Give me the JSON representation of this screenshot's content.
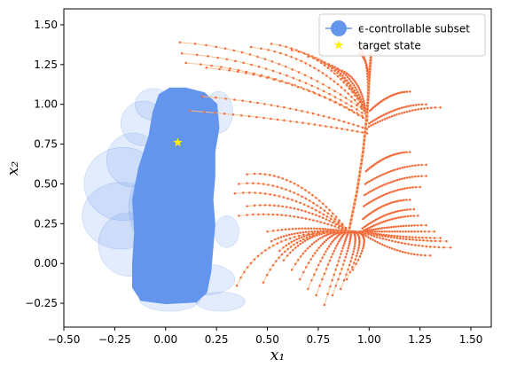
{
  "chart_data": {
    "type": "scatter",
    "xlabel": "x₁",
    "ylabel": "x₂",
    "xlim": [
      -0.5,
      1.6
    ],
    "ylim": [
      -0.4,
      1.6
    ],
    "x_ticks": [
      "−0.50",
      "−0.25",
      "0.00",
      "0.25",
      "0.50",
      "0.75",
      "1.00",
      "1.25",
      "1.50"
    ],
    "x_tick_values": [
      -0.5,
      -0.25,
      0.0,
      0.25,
      0.5,
      0.75,
      1.0,
      1.25,
      1.5
    ],
    "y_ticks": [
      "−0.25",
      "0.00",
      "0.25",
      "0.50",
      "0.75",
      "1.00",
      "1.25",
      "1.50"
    ],
    "y_tick_values": [
      -0.25,
      0.0,
      0.25,
      0.5,
      0.75,
      1.0,
      1.25,
      1.5
    ],
    "grid": false,
    "legend_position": "top-right",
    "legend": [
      {
        "label": "ϵ-controllable subset",
        "marker": "circle-line",
        "color": "#6495ED"
      },
      {
        "label": "target state",
        "marker": "star",
        "color": "#FFEE00"
      }
    ],
    "colors": {
      "subset_fill": "#6495ED",
      "subset_halo": "#D6E0F5",
      "trajectory_line": "#F8BD8A",
      "trajectory_dot": "#F26A3B",
      "target": "#FFEE00"
    },
    "target_state": {
      "x": 0.06,
      "y": 0.76
    },
    "subset_core": [
      [
        0.02,
        1.1
      ],
      [
        0.1,
        1.1
      ],
      [
        0.19,
        1.07
      ],
      [
        0.25,
        1.0
      ],
      [
        0.26,
        0.85
      ],
      [
        0.24,
        0.7
      ],
      [
        0.24,
        0.55
      ],
      [
        0.23,
        0.4
      ],
      [
        0.24,
        0.25
      ],
      [
        0.23,
        0.1
      ],
      [
        0.22,
        -0.05
      ],
      [
        0.2,
        -0.18
      ],
      [
        0.15,
        -0.24
      ],
      [
        0.0,
        -0.25
      ],
      [
        -0.12,
        -0.23
      ],
      [
        -0.16,
        -0.15
      ],
      [
        -0.16,
        0.0
      ],
      [
        -0.15,
        0.2
      ],
      [
        -0.16,
        0.4
      ],
      [
        -0.13,
        0.6
      ],
      [
        -0.08,
        0.8
      ],
      [
        -0.06,
        0.95
      ],
      [
        -0.03,
        1.06
      ]
    ],
    "subset_ellipses": [
      {
        "cx": -0.21,
        "cy": 0.5,
        "rx": 0.19,
        "ry": 0.23
      },
      {
        "cx": -0.22,
        "cy": 0.3,
        "rx": 0.19,
        "ry": 0.21
      },
      {
        "cx": -0.18,
        "cy": 0.12,
        "rx": 0.15,
        "ry": 0.2
      },
      {
        "cx": -0.16,
        "cy": 0.65,
        "rx": 0.13,
        "ry": 0.17
      },
      {
        "cx": -0.11,
        "cy": 0.88,
        "rx": 0.11,
        "ry": 0.14
      },
      {
        "cx": -0.06,
        "cy": 1.0,
        "rx": 0.09,
        "ry": 0.1
      },
      {
        "cx": 0.0,
        "cy": 0.35,
        "rx": 0.18,
        "ry": 0.29
      },
      {
        "cx": 0.02,
        "cy": -0.22,
        "rx": 0.15,
        "ry": 0.08
      },
      {
        "cx": 0.18,
        "cy": -0.1,
        "rx": 0.16,
        "ry": 0.1
      },
      {
        "cx": 0.27,
        "cy": -0.24,
        "rx": 0.12,
        "ry": 0.06
      },
      {
        "cx": 0.3,
        "cy": 0.2,
        "rx": 0.06,
        "ry": 0.1
      },
      {
        "cx": 0.26,
        "cy": 0.95,
        "rx": 0.07,
        "ry": 0.13
      }
    ],
    "trajectory_starts": [
      [
        0.07,
        1.39
      ],
      [
        0.08,
        1.32
      ],
      [
        0.1,
        1.26
      ],
      [
        0.2,
        1.23
      ],
      [
        0.18,
        1.05
      ],
      [
        0.12,
        0.96
      ],
      [
        0.42,
        1.36
      ],
      [
        0.52,
        1.38
      ],
      [
        0.62,
        1.34
      ],
      [
        0.7,
        1.3
      ],
      [
        0.78,
        1.26
      ],
      [
        0.85,
        1.22
      ],
      [
        0.93,
        1.38
      ],
      [
        0.95,
        1.32
      ],
      [
        1.2,
        1.08
      ],
      [
        1.28,
        1.0
      ],
      [
        1.35,
        0.98
      ],
      [
        1.2,
        0.7
      ],
      [
        1.28,
        0.62
      ],
      [
        1.28,
        0.55
      ],
      [
        1.25,
        0.48
      ],
      [
        1.2,
        0.4
      ],
      [
        1.22,
        0.34
      ],
      [
        1.24,
        0.3
      ],
      [
        1.28,
        0.24
      ],
      [
        1.32,
        0.2
      ],
      [
        1.35,
        0.16
      ],
      [
        1.38,
        0.14
      ],
      [
        1.4,
        0.1
      ],
      [
        1.3,
        0.05
      ],
      [
        0.4,
        0.56
      ],
      [
        0.36,
        0.5
      ],
      [
        0.34,
        0.44
      ],
      [
        0.4,
        0.36
      ],
      [
        0.36,
        0.3
      ],
      [
        0.5,
        0.2
      ],
      [
        0.52,
        0.14
      ],
      [
        0.56,
        0.08
      ],
      [
        0.58,
        0.02
      ],
      [
        0.62,
        -0.04
      ],
      [
        0.66,
        -0.1
      ],
      [
        0.7,
        -0.16
      ],
      [
        0.74,
        -0.2
      ],
      [
        0.78,
        -0.26
      ],
      [
        0.82,
        -0.2
      ],
      [
        0.86,
        -0.16
      ],
      [
        0.89,
        -0.1
      ],
      [
        0.92,
        -0.04
      ],
      [
        0.35,
        -0.14
      ],
      [
        0.48,
        -0.12
      ]
    ],
    "attractor": {
      "x": 0.9,
      "y": 0.2
    },
    "main_stem": [
      [
        0.9,
        0.2
      ],
      [
        0.94,
        0.45
      ],
      [
        0.97,
        0.7
      ],
      [
        0.99,
        0.95
      ],
      [
        1.0,
        1.15
      ],
      [
        1.01,
        1.33
      ]
    ]
  }
}
